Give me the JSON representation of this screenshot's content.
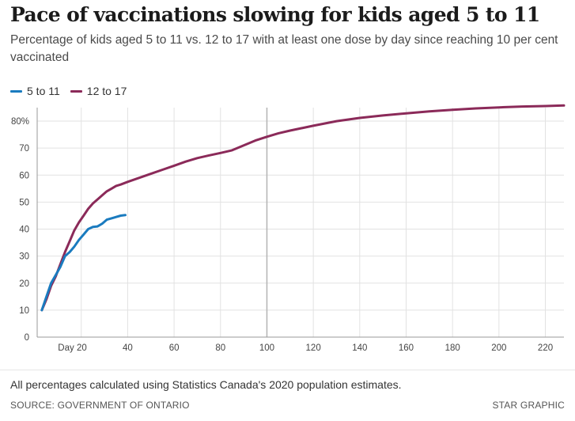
{
  "title": "Pace of vaccinations slowing for kids aged 5 to 11",
  "subtitle": "Percentage of kids aged 5 to 11 vs. 12 to 17 with at least one dose by day since reaching 10 per cent vaccinated",
  "footnote": "All percentages calculated using Statistics Canada's 2020 population estimates.",
  "source": "SOURCE: GOVERNMENT OF ONTARIO",
  "credit": "STAR GRAPHIC",
  "colors": {
    "5 to 11": "#1a7bbf",
    "12 to 17": "#8b2a59",
    "grid": "#e2e2e2",
    "axis": "#999999",
    "highlight_rule": "#b3b3b3"
  },
  "chart_data": {
    "type": "line",
    "title": "Pace of vaccinations slowing for kids aged 5 to 11",
    "xlabel": "",
    "ylabel": "",
    "xlim": [
      1,
      228
    ],
    "ylim": [
      0,
      85
    ],
    "grid": true,
    "legend_position": "top-left",
    "x_ticks": [
      20,
      40,
      60,
      80,
      100,
      120,
      140,
      160,
      180,
      200,
      220
    ],
    "x_tick_labels": [
      "Day 20",
      "40",
      "60",
      "80",
      "100",
      "120",
      "140",
      "160",
      "180",
      "200",
      "220"
    ],
    "y_ticks": [
      0,
      10,
      20,
      30,
      40,
      50,
      60,
      70,
      80
    ],
    "y_tick_labels": [
      "0",
      "10",
      "20",
      "30",
      "40",
      "50",
      "60",
      "70",
      "80%"
    ],
    "series": [
      {
        "name": "5 to 11",
        "x": [
          3,
          5,
          7,
          9,
          11,
          13,
          15,
          17,
          19,
          21,
          23,
          25,
          27,
          29,
          31,
          33,
          35,
          37,
          39
        ],
        "y": [
          10,
          15,
          20,
          23,
          26,
          30,
          31.5,
          33.5,
          36,
          38,
          40,
          40.8,
          41,
          42,
          43.5,
          44,
          44.5,
          45,
          45.2
        ]
      },
      {
        "name": "12 to 17",
        "x": [
          3,
          5,
          7,
          9,
          11,
          13,
          15,
          17,
          19,
          21,
          23,
          25,
          27,
          29,
          31,
          33,
          35,
          37,
          40,
          45,
          50,
          55,
          60,
          65,
          70,
          75,
          80,
          85,
          90,
          95,
          100,
          105,
          110,
          120,
          130,
          140,
          150,
          160,
          170,
          180,
          190,
          200,
          210,
          220,
          228
        ],
        "y": [
          10,
          14,
          19,
          22.5,
          27,
          31.5,
          35.5,
          39.5,
          42.5,
          45,
          47.5,
          49.5,
          51,
          52.5,
          54,
          55,
          56,
          56.5,
          57.5,
          59,
          60.5,
          62,
          63.5,
          65,
          66.3,
          67.3,
          68.2,
          69.2,
          71,
          72.8,
          74.2,
          75.5,
          76.5,
          78.3,
          80,
          81.2,
          82.1,
          82.9,
          83.6,
          84.2,
          84.7,
          85.1,
          85.4,
          85.6,
          85.8
        ]
      }
    ]
  }
}
